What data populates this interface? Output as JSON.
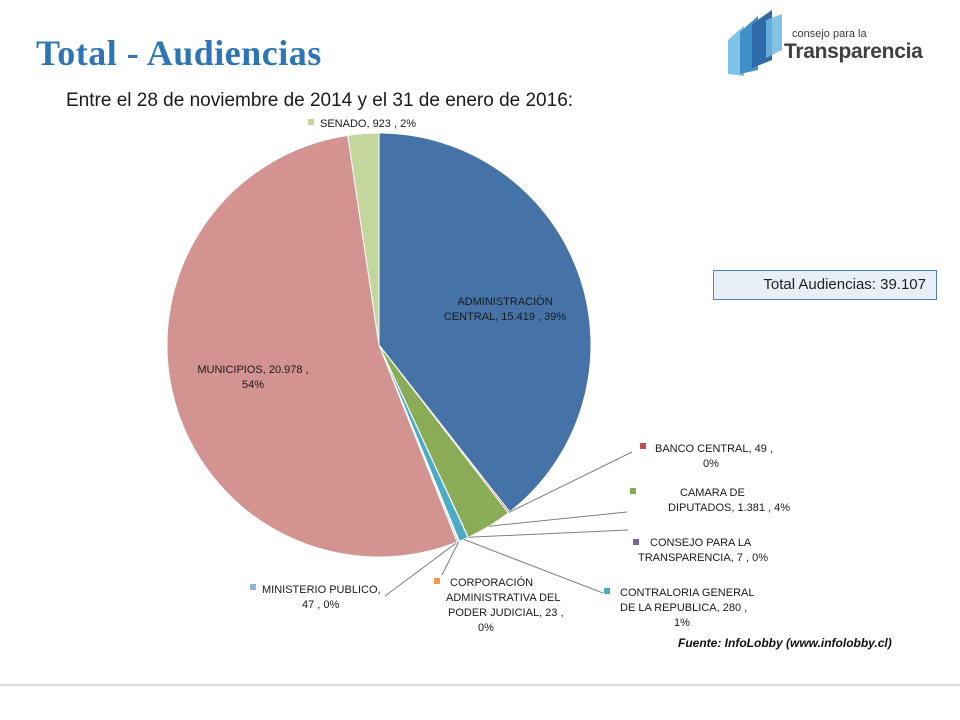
{
  "title": "Total - Audiencias",
  "subtitle": "Entre el 28 de noviembre de 2014 y el 31 de enero de 2016:",
  "logo": {
    "line1": "consejo para la",
    "line2": "Transparencia"
  },
  "total_box": "Total Audiencias: 39.107",
  "source": "Fuente: InfoLobby (www.infolobby.cl)",
  "chart_data": {
    "type": "pie",
    "title": "",
    "slices": [
      {
        "name": "ADMINISTRACIÓN CENTRAL",
        "value": 15419,
        "percent": "39%",
        "color": "#4572a7",
        "label_lines": [
          "ADMINISTRACIÓN",
          "CENTRAL,  15.419 , 39%"
        ]
      },
      {
        "name": "BANCO CENTRAL",
        "value": 49,
        "percent": "0%",
        "color": "#c0504d",
        "label_lines": [
          "BANCO CENTRAL,  49 ,",
          "0%"
        ]
      },
      {
        "name": "CAMARA DE DIPUTADOS",
        "value": 1381,
        "percent": "4%",
        "color": "#8aac57",
        "label_lines": [
          "CAMARA DE",
          "DIPUTADOS,  1.381 , 4%"
        ]
      },
      {
        "name": "CONSEJO PARA LA TRANSPARENCIA",
        "value": 7,
        "percent": "0%",
        "color": "#7f5f9f",
        "label_lines": [
          "CONSEJO PARA LA",
          "TRANSPARENCIA,  7 , 0%"
        ]
      },
      {
        "name": "CONTRALORIA GENERAL DE LA REPUBLICA",
        "value": 280,
        "percent": "1%",
        "color": "#4bacc6",
        "label_lines": [
          "CONTRALORIA GENERAL",
          "DE LA REPUBLICA,  280 ,",
          "1%"
        ]
      },
      {
        "name": "CORPORACIÓN ADMINISTRATIVA DEL PODER JUDICIAL",
        "value": 23,
        "percent": "0%",
        "color": "#f79646",
        "label_lines": [
          "CORPORACIÓN",
          "ADMINISTRATIVA DEL",
          "PODER JUDICIAL,  23 ,",
          "0%"
        ]
      },
      {
        "name": "MINISTERIO PUBLICO",
        "value": 47,
        "percent": "0%",
        "color": "#95b3d7",
        "label_lines": [
          "MINISTERIO PUBLICO,",
          "47 , 0%"
        ]
      },
      {
        "name": "MUNICIPIOS",
        "value": 20978,
        "percent": "54%",
        "color": "#d39391",
        "label_lines": [
          "MUNICIPIOS,  20.978 ,",
          "54%"
        ]
      },
      {
        "name": "SENADO",
        "value": 923,
        "percent": "2%",
        "color": "#c3d69b",
        "label_lines": [
          "SENADO,  923 , 2%"
        ]
      }
    ]
  }
}
